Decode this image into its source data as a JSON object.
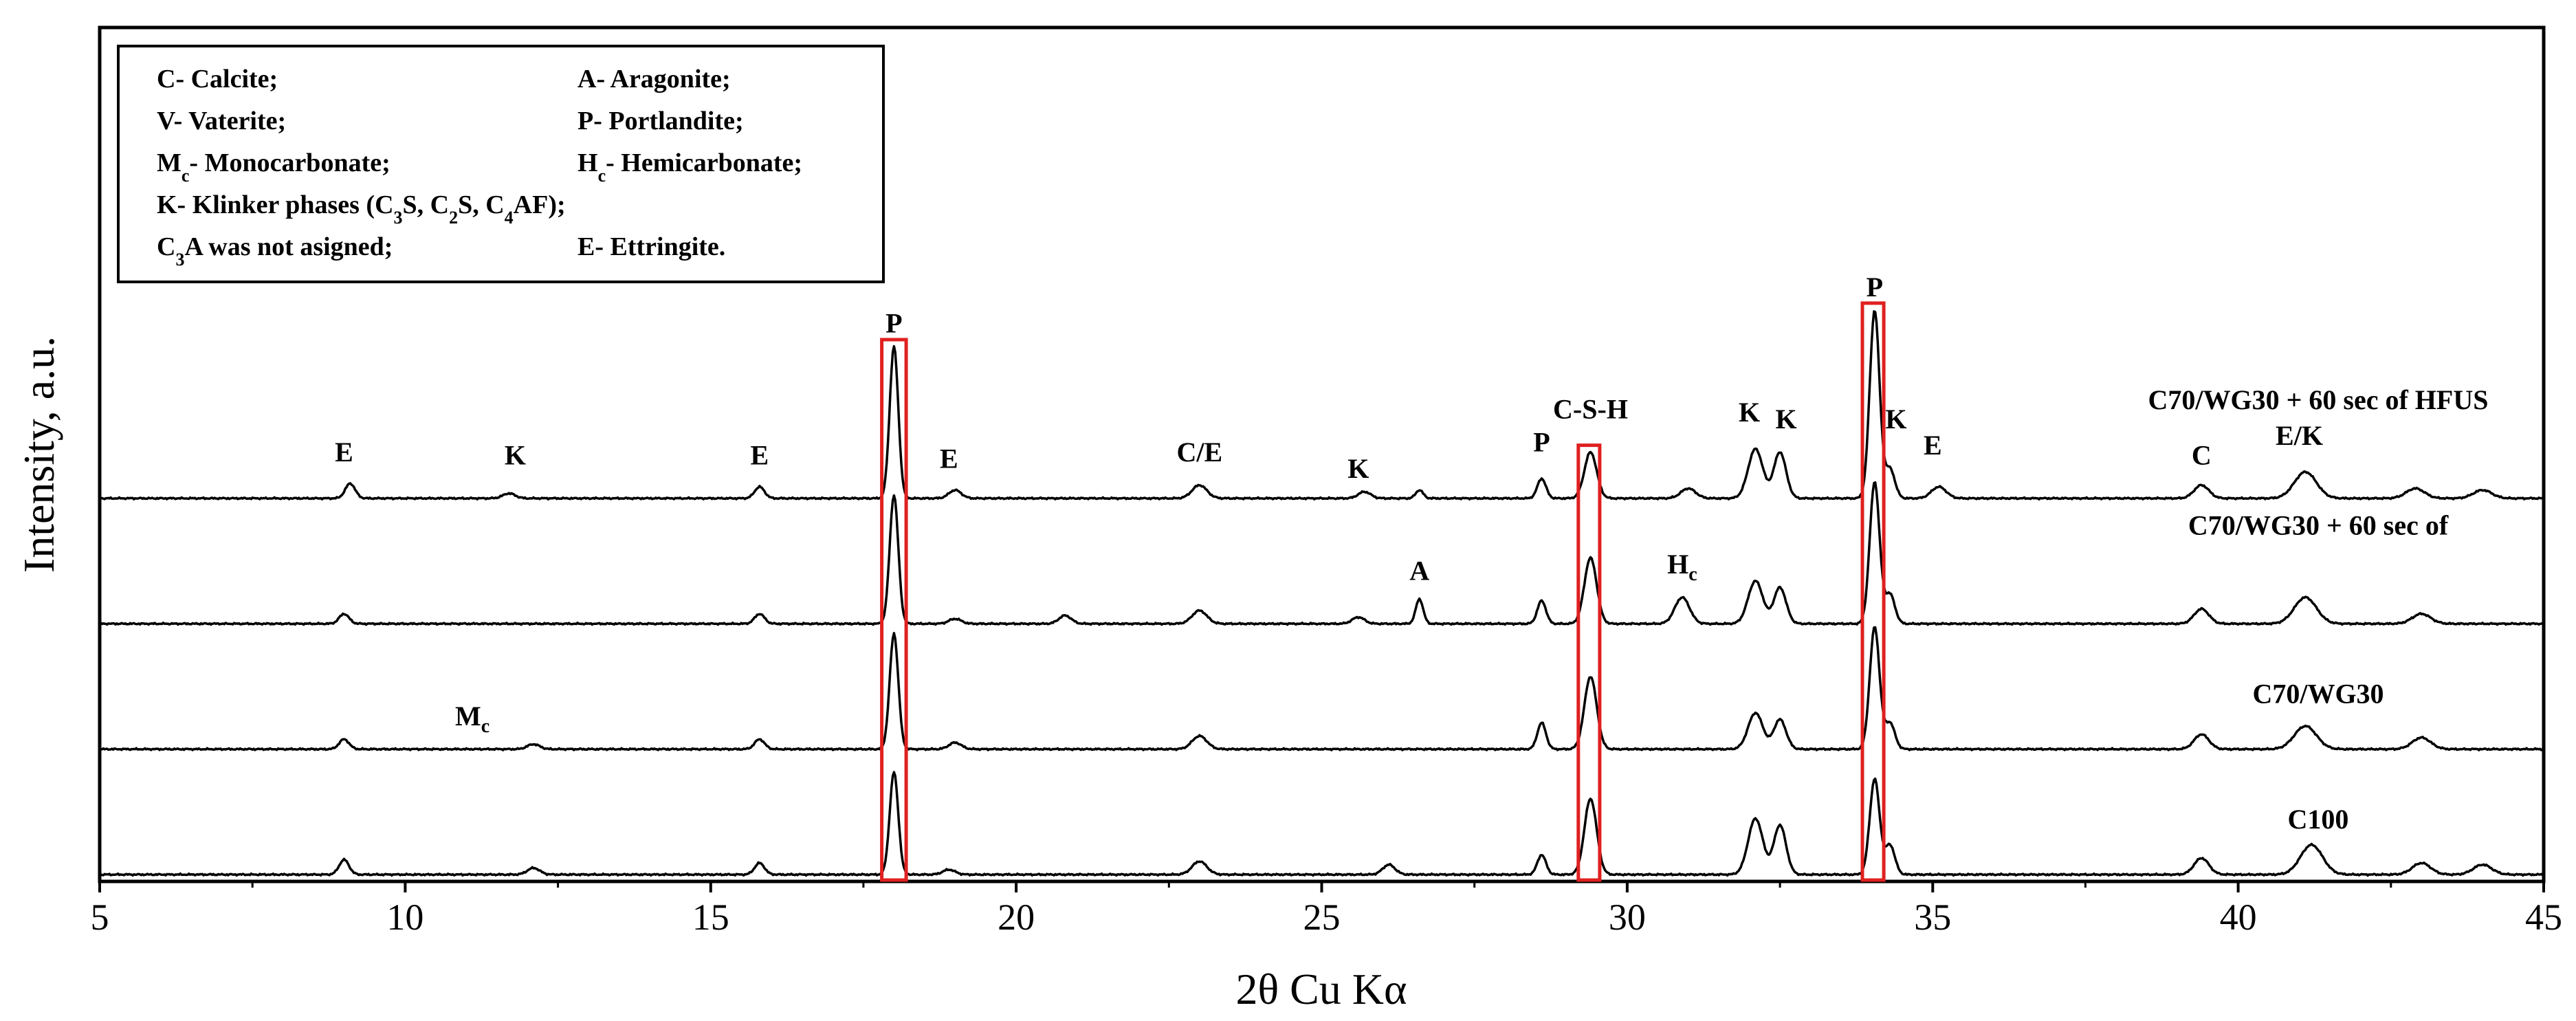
{
  "chart_data": {
    "type": "line",
    "title": "",
    "xlabel": "2θ Cu Kα",
    "ylabel": "Intensity, a.u.",
    "xlim": [
      5,
      45
    ],
    "xticks": [
      5,
      10,
      15,
      20,
      25,
      30,
      35,
      40,
      45
    ],
    "grid": false,
    "baseline_noise": 0.03,
    "series": [
      {
        "name": "C100",
        "offset": 0,
        "peaks": [
          [
            9.0,
            0.45,
            0.08
          ],
          [
            12.1,
            0.2,
            0.1
          ],
          [
            15.8,
            0.35,
            0.08
          ],
          [
            18.0,
            3.1,
            0.07
          ],
          [
            18.9,
            0.15,
            0.1
          ],
          [
            23.0,
            0.4,
            0.12
          ],
          [
            26.1,
            0.3,
            0.1
          ],
          [
            28.6,
            0.6,
            0.07
          ],
          [
            29.4,
            2.3,
            0.1
          ],
          [
            32.1,
            1.7,
            0.12
          ],
          [
            32.5,
            1.5,
            0.1
          ],
          [
            34.05,
            2.9,
            0.08
          ],
          [
            34.3,
            0.9,
            0.08
          ],
          [
            39.4,
            0.5,
            0.12
          ],
          [
            41.2,
            0.9,
            0.18
          ],
          [
            43.0,
            0.35,
            0.15
          ],
          [
            44.0,
            0.3,
            0.15
          ]
        ]
      },
      {
        "name": "C70/WG30",
        "offset": 3.8,
        "peaks": [
          [
            9.0,
            0.3,
            0.08
          ],
          [
            12.1,
            0.15,
            0.1
          ],
          [
            15.8,
            0.3,
            0.08
          ],
          [
            18.0,
            3.5,
            0.07
          ],
          [
            19.0,
            0.2,
            0.1
          ],
          [
            23.0,
            0.4,
            0.12
          ],
          [
            28.6,
            0.8,
            0.07
          ],
          [
            29.4,
            2.2,
            0.1
          ],
          [
            32.1,
            1.1,
            0.12
          ],
          [
            32.5,
            0.9,
            0.1
          ],
          [
            34.05,
            3.7,
            0.08
          ],
          [
            34.3,
            0.8,
            0.08
          ],
          [
            39.4,
            0.45,
            0.12
          ],
          [
            41.1,
            0.7,
            0.18
          ],
          [
            43.0,
            0.35,
            0.15
          ]
        ]
      },
      {
        "name": "C70/WG30 + 60 sec of",
        "offset": 7.6,
        "peaks": [
          [
            9.0,
            0.3,
            0.08
          ],
          [
            15.8,
            0.3,
            0.08
          ],
          [
            18.0,
            3.9,
            0.07
          ],
          [
            19.0,
            0.15,
            0.1
          ],
          [
            20.8,
            0.25,
            0.1
          ],
          [
            23.0,
            0.4,
            0.12
          ],
          [
            25.6,
            0.2,
            0.1
          ],
          [
            26.6,
            0.75,
            0.06
          ],
          [
            28.6,
            0.7,
            0.07
          ],
          [
            29.4,
            2.0,
            0.1
          ],
          [
            30.9,
            0.8,
            0.12
          ],
          [
            32.1,
            1.3,
            0.12
          ],
          [
            32.5,
            1.1,
            0.1
          ],
          [
            34.05,
            4.3,
            0.08
          ],
          [
            34.3,
            0.9,
            0.08
          ],
          [
            39.4,
            0.45,
            0.12
          ],
          [
            41.1,
            0.8,
            0.18
          ],
          [
            43.0,
            0.3,
            0.15
          ]
        ]
      },
      {
        "name": "C70/WG30 + 60 sec of HFUS",
        "offset": 11.4,
        "peaks": [
          [
            9.1,
            0.45,
            0.08
          ],
          [
            11.7,
            0.15,
            0.1
          ],
          [
            15.8,
            0.35,
            0.08
          ],
          [
            18.0,
            4.6,
            0.07
          ],
          [
            19.0,
            0.25,
            0.1
          ],
          [
            23.0,
            0.4,
            0.12
          ],
          [
            25.7,
            0.2,
            0.1
          ],
          [
            26.6,
            0.25,
            0.06
          ],
          [
            28.6,
            0.6,
            0.07
          ],
          [
            29.4,
            1.4,
            0.1
          ],
          [
            31.0,
            0.3,
            0.12
          ],
          [
            32.1,
            1.5,
            0.12
          ],
          [
            32.5,
            1.4,
            0.1
          ],
          [
            34.05,
            5.7,
            0.08
          ],
          [
            34.3,
            0.9,
            0.08
          ],
          [
            35.1,
            0.35,
            0.12
          ],
          [
            39.4,
            0.4,
            0.12
          ],
          [
            41.1,
            0.8,
            0.18
          ],
          [
            42.9,
            0.3,
            0.15
          ],
          [
            44.0,
            0.25,
            0.15
          ]
        ]
      }
    ],
    "highlight_ranges": [
      [
        17.8,
        18.2
      ],
      [
        29.2,
        29.55
      ],
      [
        33.85,
        34.2
      ]
    ],
    "peak_labels": [
      {
        "text": "E",
        "x": 9.0,
        "series": 3,
        "above": 1.0
      },
      {
        "text": "K",
        "x": 11.8,
        "series": 3,
        "above": 0.9
      },
      {
        "text": "E",
        "x": 15.8,
        "series": 3,
        "above": 0.9
      },
      {
        "text": "P",
        "x": 18.0,
        "series": 3,
        "above": 4.9
      },
      {
        "text": "E",
        "x": 18.9,
        "series": 3,
        "above": 0.8
      },
      {
        "text": "C/E",
        "x": 23.0,
        "series": 3,
        "above": 1.0
      },
      {
        "text": "K",
        "x": 25.6,
        "series": 3,
        "above": 0.5
      },
      {
        "text": "P",
        "x": 28.6,
        "series": 3,
        "above": 1.3
      },
      {
        "text": "C-S-H",
        "x": 29.4,
        "series": 3,
        "above": 2.3
      },
      {
        "text": "K",
        "x": 32.0,
        "series": 3,
        "above": 2.2
      },
      {
        "text": "K",
        "x": 32.6,
        "series": 3,
        "above": 2.0
      },
      {
        "text": "P",
        "x": 34.05,
        "series": 3,
        "above": 6.0
      },
      {
        "text": "K",
        "x": 34.4,
        "series": 3,
        "above": 2.0
      },
      {
        "text": "E",
        "x": 35.0,
        "series": 3,
        "above": 1.2
      },
      {
        "text": "C",
        "x": 39.4,
        "series": 3,
        "above": 0.9
      },
      {
        "text": "E/K",
        "x": 41.0,
        "series": 3,
        "above": 1.5
      },
      {
        "text": "A",
        "x": 26.6,
        "series": 2,
        "above": 1.2
      },
      {
        "text": "H",
        "sub": "c",
        "x": 30.9,
        "series": 2,
        "above": 1.4
      },
      {
        "text": "M",
        "sub": "c",
        "x": 11.1,
        "series": 1,
        "above": 0.6
      }
    ],
    "series_labels": [
      {
        "text": "C100",
        "series": 0
      },
      {
        "text": "C70/WG30",
        "series": 1
      },
      {
        "text": "C70/WG30 + 60 sec of",
        "series": 2
      },
      {
        "text": "C70/WG30 + 60 sec of HFUS",
        "series": 3
      }
    ],
    "legend": {
      "position": "top-left",
      "rows": [
        [
          [
            "C- Calcite;"
          ],
          [
            "A- Aragonite;"
          ]
        ],
        [
          [
            "V- Vaterite;"
          ],
          [
            "P- Portlandite;"
          ]
        ],
        [
          [
            "M"
          ],
          [
            "c",
            "sub"
          ],
          [
            "- Monocarbonate;"
          ],
          [
            "H"
          ],
          [
            "c",
            "sub"
          ],
          [
            "- Hemicarbonate;"
          ]
        ],
        [
          [
            "K- Klinker phases (C"
          ],
          [
            "3",
            "sub"
          ],
          [
            "S, C"
          ],
          [
            "2",
            "sub"
          ],
          [
            "S, C"
          ],
          [
            "4",
            "sub"
          ],
          [
            "AF);"
          ]
        ],
        [
          [
            "C"
          ],
          [
            "3",
            "sub"
          ],
          [
            "A was not asigned;"
          ],
          [
            "E- Ettringite."
          ]
        ]
      ]
    },
    "colors": {
      "line": "#000000",
      "highlight": "#e02020",
      "axis": "#000000"
    }
  }
}
